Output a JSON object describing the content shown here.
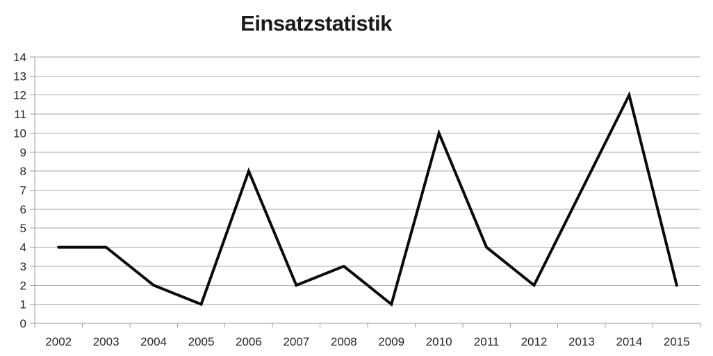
{
  "window": {
    "background": "#ffffff"
  },
  "chart_data": {
    "type": "line",
    "title": "Einsatzstatistik",
    "categories": [
      "2002",
      "2003",
      "2004",
      "2005",
      "2006",
      "2007",
      "2008",
      "2009",
      "2010",
      "2011",
      "2012",
      "2013",
      "2014",
      "2015"
    ],
    "values": [
      4,
      4,
      2,
      1,
      8,
      2,
      3,
      1,
      10,
      4,
      2,
      7,
      12,
      2
    ],
    "xlabel": "",
    "ylabel": "",
    "ylim": [
      0,
      14
    ],
    "ytick_step": 1,
    "grid": "horizontal",
    "legend": "none",
    "colors": {
      "series_line": "#0a0a0a",
      "gridline": "#a6a6a6",
      "axis": "#9b9b9b",
      "tick_label": "#262626",
      "title": "#1a1a1a",
      "background": "#ffffff"
    }
  }
}
